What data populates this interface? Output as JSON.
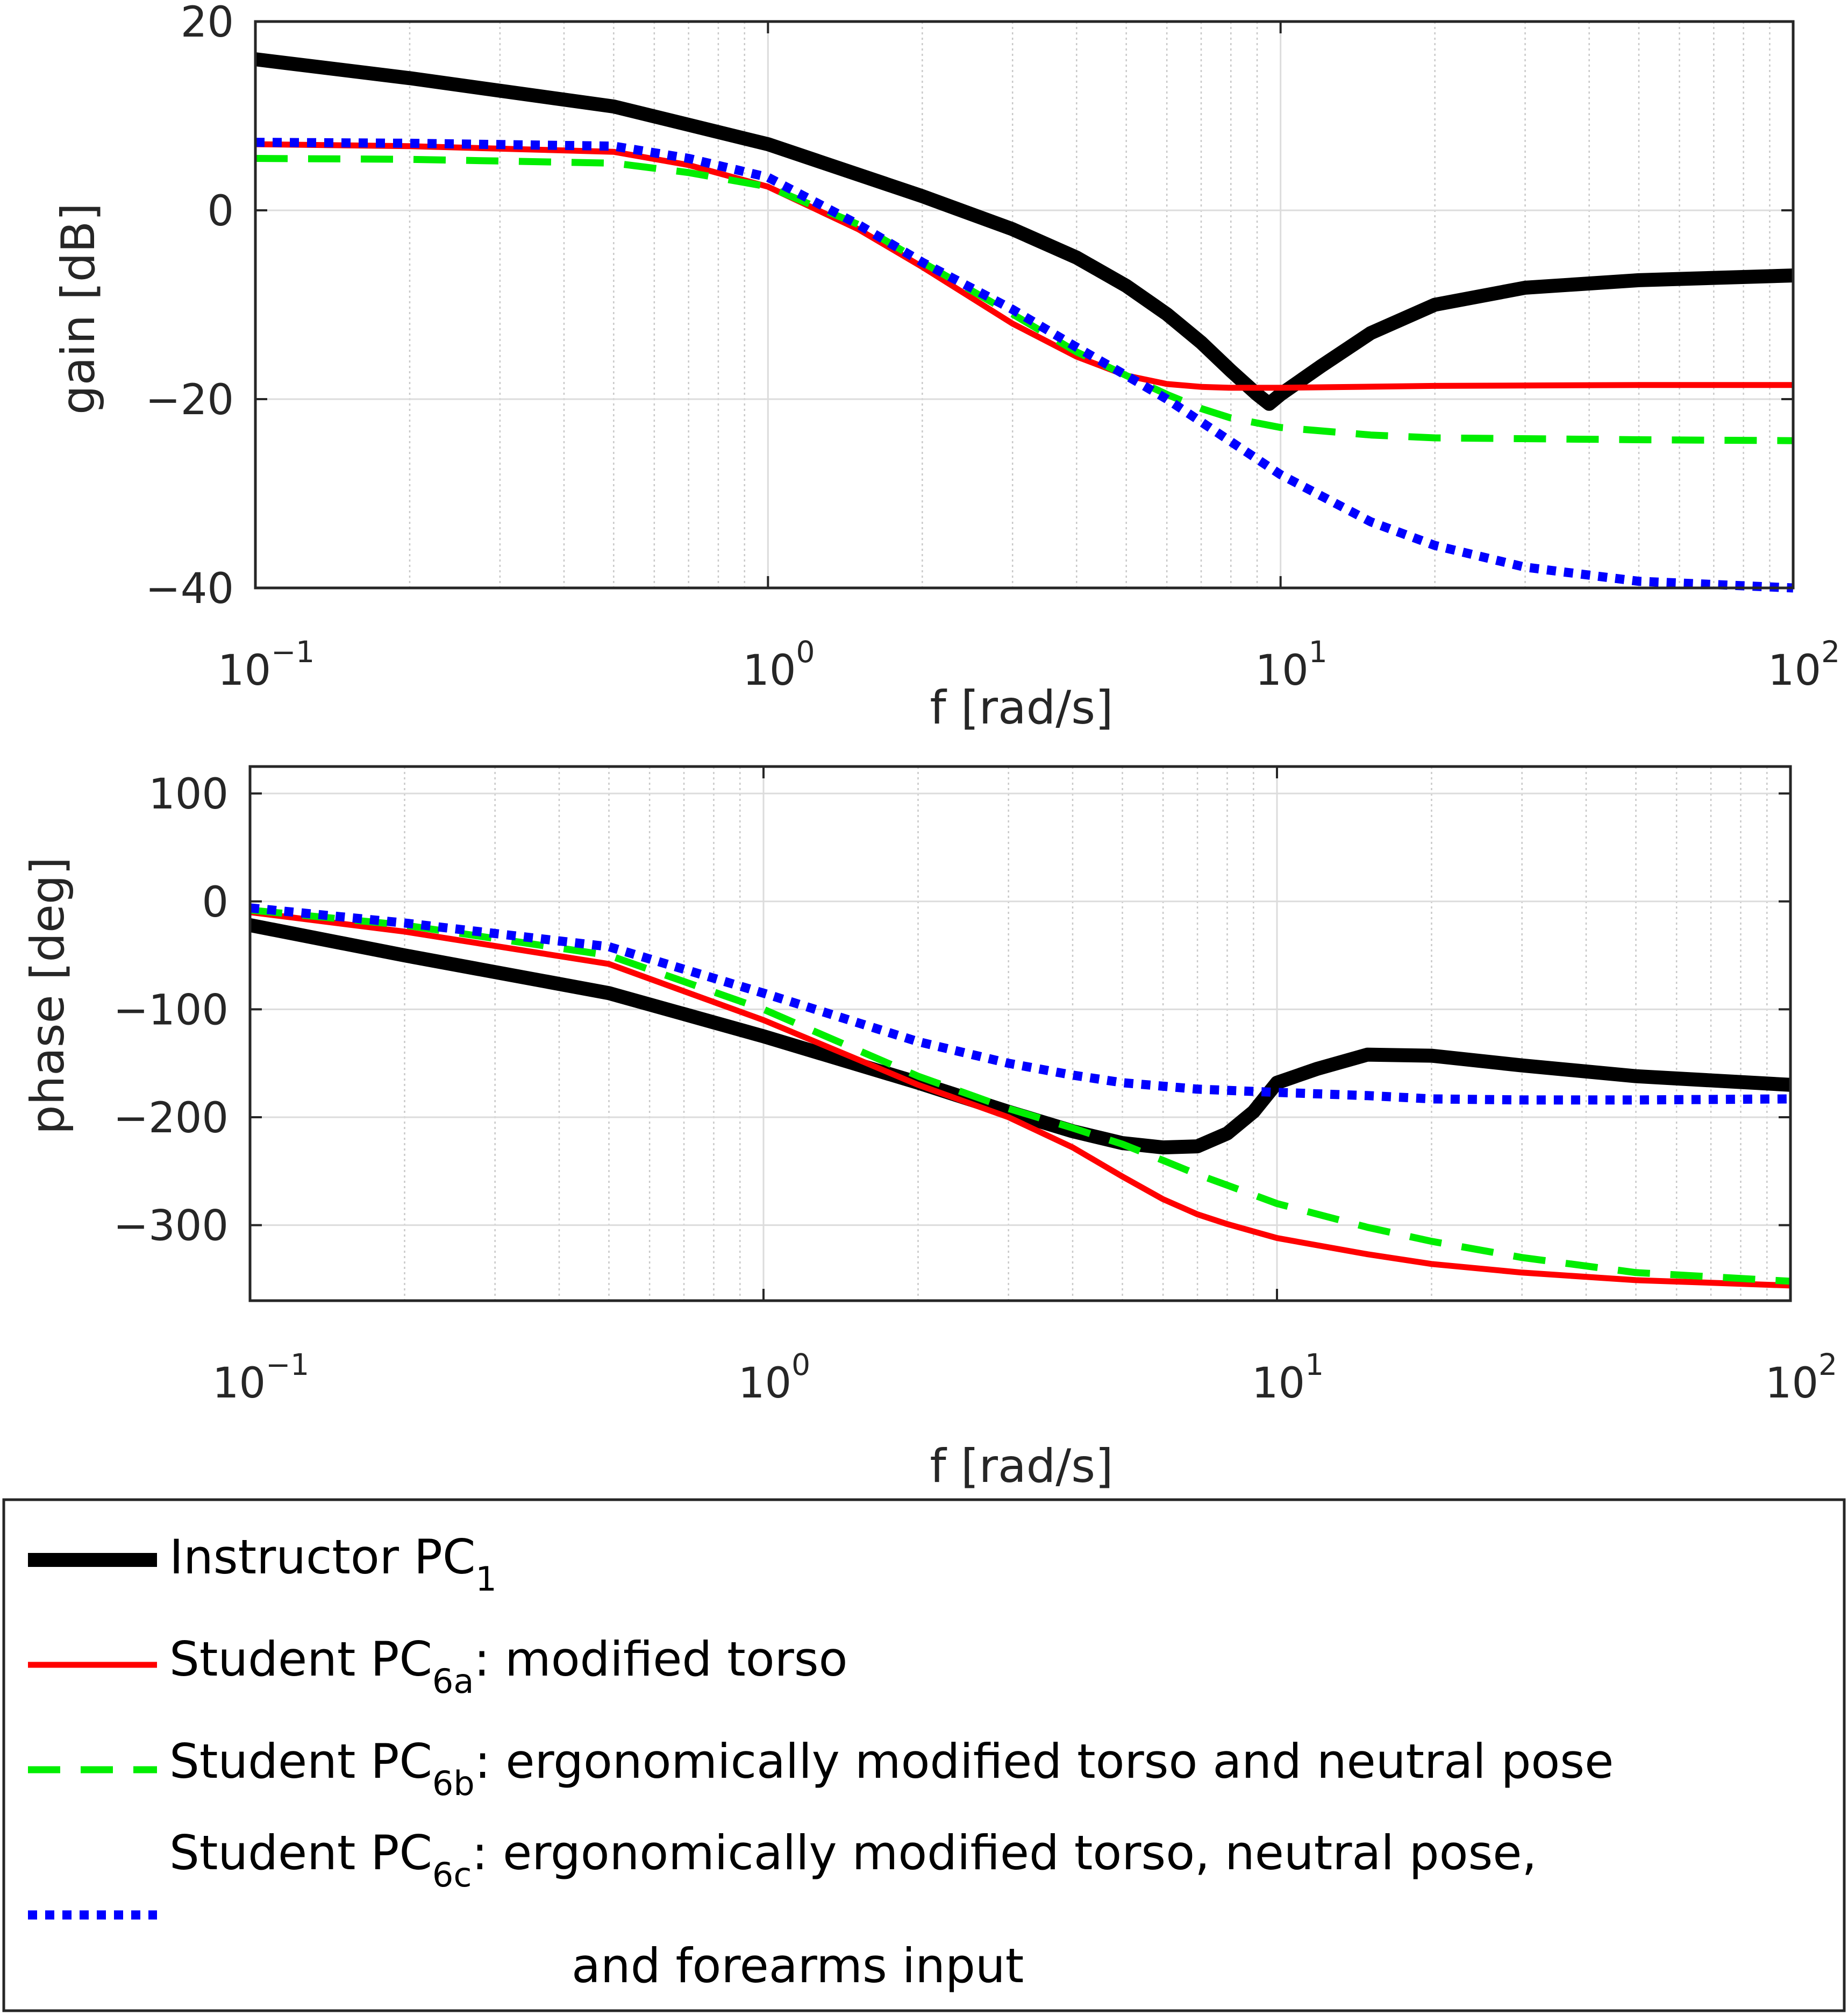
{
  "legend": {
    "items": [
      {
        "prefix": "Instructor PC",
        "sub": "1",
        "desc": "",
        "desc2": "",
        "color": "#000000",
        "style": "solid-thick"
      },
      {
        "prefix": "Student PC",
        "sub": "6a",
        "desc": ": modified torso",
        "desc2": "",
        "color": "#ff0000",
        "style": "solid"
      },
      {
        "prefix": "Student PC",
        "sub": "6b",
        "desc": ": ergonomically modified torso and neutral pose",
        "desc2": "",
        "color": "#00ee00",
        "style": "dashed"
      },
      {
        "prefix": "Student PC",
        "sub": "6c",
        "desc": ": ergonomically modified torso, neutral pose,",
        "desc2": "and forearms input",
        "color": "#0000ff",
        "style": "dotted"
      }
    ]
  },
  "chart_data": [
    {
      "type": "line",
      "xscale": "log",
      "xlabel": "f [rad/s]",
      "ylabel": "gain [dB]",
      "xlim": [
        0.1,
        100
      ],
      "ylim": [
        -40,
        20
      ],
      "xticks": [
        {
          "base": "10",
          "exp": "−1",
          "value": 0.1
        },
        {
          "base": "10",
          "exp": "0",
          "value": 1
        },
        {
          "base": "10",
          "exp": "1",
          "value": 10
        },
        {
          "base": "10",
          "exp": "2",
          "value": 100
        }
      ],
      "yticks": [
        {
          "label": "20",
          "value": 20
        },
        {
          "label": "0",
          "value": 0
        },
        {
          "label": "−20",
          "value": -20
        },
        {
          "label": "−40",
          "value": -40
        }
      ],
      "grid": true,
      "series": [
        {
          "name": "Instructor PC1",
          "color": "#000000",
          "style": "solid-thick",
          "x": [
            0.1,
            0.2,
            0.5,
            1,
            2,
            3,
            4,
            5,
            6,
            7,
            8,
            9,
            9.5,
            10,
            12,
            15,
            20,
            30,
            50,
            100
          ],
          "y": [
            16,
            14,
            11,
            7,
            1.5,
            -2,
            -5,
            -8,
            -11,
            -14,
            -17,
            -19.5,
            -20.5,
            -19.5,
            -16.5,
            -13,
            -10,
            -8.2,
            -7.4,
            -6.9
          ]
        },
        {
          "name": "Student PC6a",
          "color": "#ff0000",
          "style": "solid",
          "x": [
            0.1,
            0.2,
            0.5,
            0.7,
            1,
            1.5,
            2,
            3,
            4,
            5,
            6,
            7,
            8,
            10,
            20,
            50,
            100
          ],
          "y": [
            7,
            6.8,
            6.2,
            4.8,
            2.5,
            -2,
            -6,
            -12,
            -15.5,
            -17.5,
            -18.4,
            -18.7,
            -18.8,
            -18.8,
            -18.6,
            -18.5,
            -18.5
          ]
        },
        {
          "name": "Student PC6b",
          "color": "#00ee00",
          "style": "dashed",
          "x": [
            0.1,
            0.2,
            0.5,
            0.7,
            1,
            1.5,
            2,
            3,
            4,
            5,
            6,
            7,
            8,
            10,
            15,
            20,
            50,
            100
          ],
          "y": [
            5.5,
            5.4,
            5.0,
            4.0,
            2.5,
            -1.5,
            -5.5,
            -11,
            -15,
            -17.5,
            -19.5,
            -21,
            -22,
            -23,
            -23.8,
            -24.1,
            -24.3,
            -24.4
          ]
        },
        {
          "name": "Student PC6c",
          "color": "#0000ff",
          "style": "dotted",
          "x": [
            0.1,
            0.2,
            0.5,
            0.7,
            1,
            1.5,
            2,
            3,
            4,
            5,
            6,
            8,
            10,
            15,
            20,
            30,
            50,
            100
          ],
          "y": [
            7.2,
            7.1,
            6.8,
            5.5,
            3.5,
            -1.5,
            -5.5,
            -10.5,
            -14.5,
            -17.5,
            -20,
            -24.5,
            -28,
            -33,
            -35.5,
            -37.8,
            -39.3,
            -40
          ]
        }
      ]
    },
    {
      "type": "line",
      "xscale": "log",
      "xlabel": "f [rad/s]",
      "ylabel": "phase [deg]",
      "xlim": [
        0.1,
        100
      ],
      "ylim": [
        -370,
        125
      ],
      "xticks": [
        {
          "base": "10",
          "exp": "−1",
          "value": 0.1
        },
        {
          "base": "10",
          "exp": "0",
          "value": 1
        },
        {
          "base": "10",
          "exp": "1",
          "value": 10
        },
        {
          "base": "10",
          "exp": "2",
          "value": 100
        }
      ],
      "yticks": [
        {
          "label": "100",
          "value": 100
        },
        {
          "label": "0",
          "value": 0
        },
        {
          "label": "−100",
          "value": -100
        },
        {
          "label": "−200",
          "value": -200
        },
        {
          "label": "−300",
          "value": -300
        }
      ],
      "grid": true,
      "series": [
        {
          "name": "Instructor PC1",
          "color": "#000000",
          "style": "solid-thick",
          "x": [
            0.1,
            0.2,
            0.5,
            1,
            2,
            3,
            4,
            5,
            6,
            7,
            8,
            9,
            10,
            12,
            15,
            20,
            30,
            50,
            100
          ],
          "y": [
            -22,
            -50,
            -85,
            -125,
            -168,
            -195,
            -213,
            -224,
            -228,
            -227,
            -215,
            -195,
            -168,
            -155,
            -142,
            -143,
            -152,
            -162,
            -170
          ]
        },
        {
          "name": "Student PC6a",
          "color": "#ff0000",
          "style": "solid",
          "x": [
            0.1,
            0.2,
            0.5,
            1,
            1.5,
            2,
            3,
            4,
            5,
            6,
            7,
            8,
            10,
            15,
            20,
            30,
            50,
            100
          ],
          "y": [
            -10,
            -28,
            -58,
            -110,
            -145,
            -170,
            -200,
            -228,
            -255,
            -276,
            -290,
            -299,
            -312,
            -327,
            -336,
            -344,
            -351,
            -356
          ]
        },
        {
          "name": "Student PC6b",
          "color": "#00ee00",
          "style": "dashed",
          "x": [
            0.1,
            0.2,
            0.5,
            1,
            2,
            3,
            4,
            5,
            6,
            7,
            8,
            10,
            15,
            20,
            30,
            50,
            100
          ],
          "y": [
            -8,
            -22,
            -50,
            -100,
            -162,
            -192,
            -210,
            -225,
            -240,
            -253,
            -263,
            -280,
            -302,
            -315,
            -330,
            -344,
            -352
          ]
        },
        {
          "name": "Student PC6c",
          "color": "#0000ff",
          "style": "dotted",
          "x": [
            0.1,
            0.2,
            0.5,
            1,
            2,
            3,
            4,
            5,
            7,
            10,
            15,
            20,
            30,
            50,
            100
          ],
          "y": [
            -6,
            -20,
            -42,
            -85,
            -130,
            -150,
            -161,
            -168,
            -174,
            -177,
            -180,
            -183,
            -184,
            -184,
            -183
          ]
        }
      ]
    }
  ]
}
